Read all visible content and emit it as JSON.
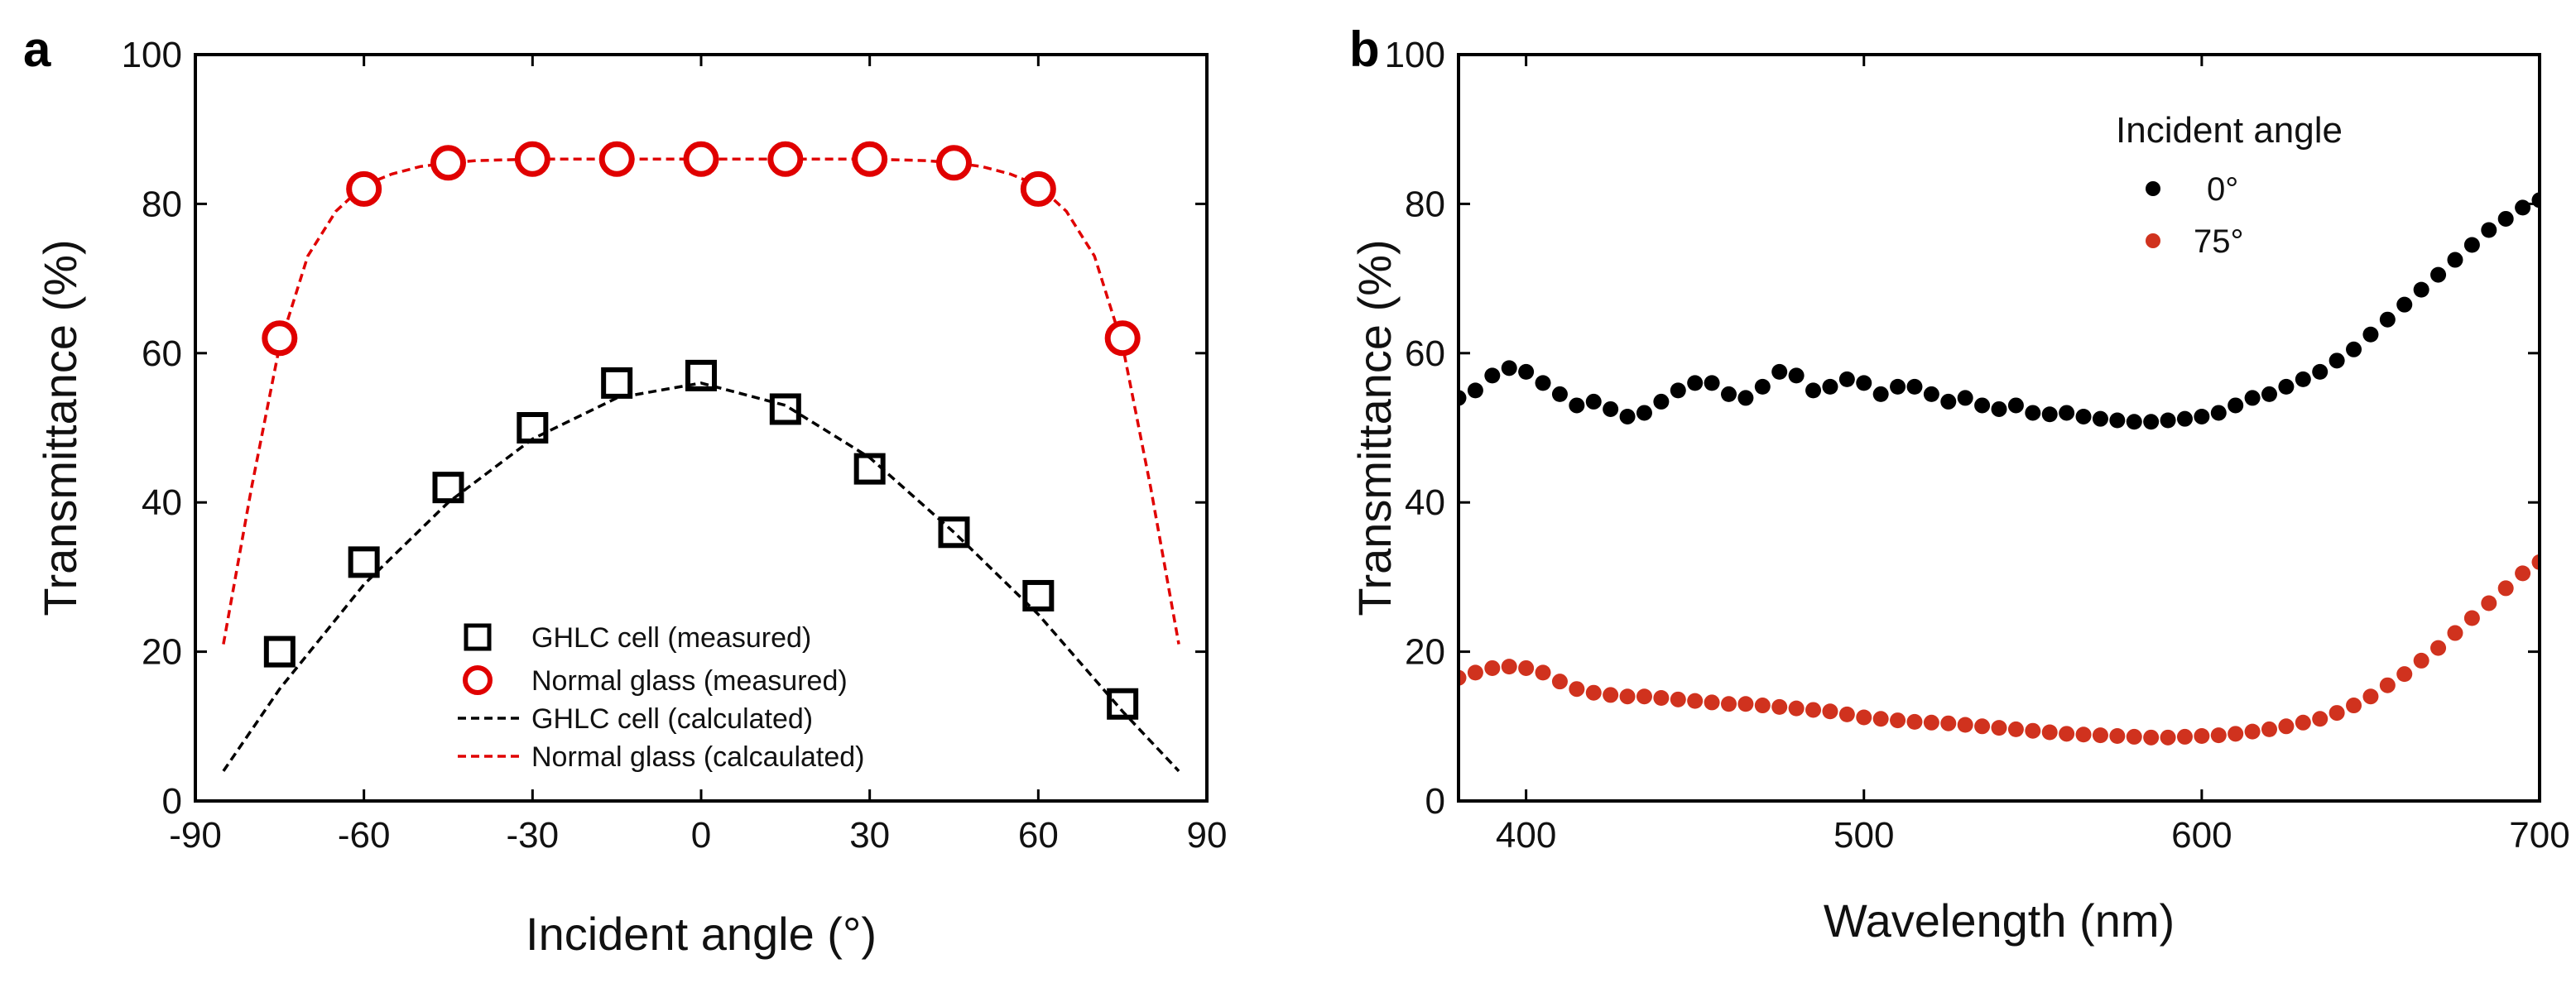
{
  "chart_data": [
    {
      "panel_label": "a",
      "type": "scatter",
      "xlabel": "Incident angle (°)",
      "ylabel": "Transmittance (%)",
      "xlim": [
        -90,
        90
      ],
      "ylim": [
        0,
        100
      ],
      "xticks": [
        "-90",
        "-60",
        "-30",
        "0",
        "30",
        "60",
        "90"
      ],
      "yticks": [
        "0",
        "20",
        "40",
        "60",
        "80",
        "100"
      ],
      "legend_position": "bottom-center",
      "series": [
        {
          "name": "GHLC cell (measured)",
          "kind": "marker-square",
          "color": "#000000",
          "x": [
            -75,
            -60,
            -45,
            -30,
            -15,
            0,
            15,
            30,
            45,
            60,
            75
          ],
          "y": [
            20,
            32,
            42,
            50,
            56,
            57,
            52.5,
            44.5,
            36,
            27.5,
            13
          ]
        },
        {
          "name": "Normal glass (measured)",
          "kind": "marker-circle",
          "color": "#e00000",
          "x": [
            -75,
            -60,
            -45,
            -30,
            -15,
            0,
            15,
            30,
            45,
            60,
            75
          ],
          "y": [
            62,
            82,
            85.5,
            86,
            86,
            86,
            86,
            86,
            85.5,
            82,
            62
          ]
        },
        {
          "name": "GHLC cell (calculated)",
          "kind": "dashed-line",
          "color": "#000000",
          "x": [
            -85,
            -75,
            -60,
            -45,
            -30,
            -15,
            0,
            15,
            30,
            45,
            60,
            75,
            85
          ],
          "y": [
            4,
            15,
            29,
            40,
            48.5,
            54,
            56,
            53,
            46,
            36,
            25,
            12,
            4
          ]
        },
        {
          "name": "Normal glass (calcaulated)",
          "kind": "dashed-line",
          "color": "#e00000",
          "x": [
            -85,
            -80,
            -75,
            -70,
            -65,
            -60,
            -55,
            -50,
            -45,
            -40,
            -30,
            -20,
            -10,
            0,
            10,
            20,
            30,
            40,
            45,
            50,
            55,
            60,
            65,
            70,
            75,
            80,
            85
          ],
          "y": [
            21,
            42,
            61,
            73,
            79,
            82.5,
            84,
            85,
            85.5,
            85.8,
            86,
            86,
            86,
            86,
            86,
            86,
            86,
            85.8,
            85.5,
            85,
            84,
            82.5,
            79,
            73,
            61,
            42,
            21
          ]
        }
      ]
    },
    {
      "panel_label": "b",
      "type": "scatter",
      "xlabel": "Wavelength (nm)",
      "ylabel": "Transmittance (%)",
      "xlim": [
        380,
        700
      ],
      "ylim": [
        0,
        100
      ],
      "xticks": [
        "400",
        "500",
        "600",
        "700"
      ],
      "yticks": [
        "0",
        "20",
        "40",
        "60",
        "80",
        "100"
      ],
      "legend_title": "Incident angle",
      "legend_position": "top-right",
      "series": [
        {
          "name": "0°",
          "color": "#000000",
          "x": [
            380,
            385,
            390,
            395,
            400,
            405,
            410,
            415,
            420,
            425,
            430,
            435,
            440,
            445,
            450,
            455,
            460,
            465,
            470,
            475,
            480,
            485,
            490,
            495,
            500,
            505,
            510,
            515,
            520,
            525,
            530,
            535,
            540,
            545,
            550,
            555,
            560,
            565,
            570,
            575,
            580,
            585,
            590,
            595,
            600,
            605,
            610,
            615,
            620,
            625,
            630,
            635,
            640,
            645,
            650,
            655,
            660,
            665,
            670,
            675,
            680,
            685,
            690,
            695,
            700
          ],
          "y": [
            54,
            55,
            57,
            58,
            57.5,
            56,
            54.5,
            53,
            53.5,
            52.5,
            51.5,
            52,
            53.5,
            55,
            56,
            56,
            54.5,
            54,
            55.5,
            57.5,
            57,
            55,
            55.5,
            56.5,
            56,
            54.5,
            55.5,
            55.5,
            54.5,
            53.5,
            54,
            53,
            52.5,
            53,
            52,
            51.8,
            52,
            51.5,
            51.2,
            51,
            50.8,
            50.8,
            51,
            51.2,
            51.5,
            52,
            53,
            54,
            54.5,
            55.5,
            56.5,
            57.5,
            59,
            60.5,
            62.5,
            64.5,
            66.5,
            68.5,
            70.5,
            72.5,
            74.5,
            76.5,
            78,
            79.5,
            80.5
          ]
        },
        {
          "name": "75°",
          "color": "#d0321e",
          "x": [
            380,
            385,
            390,
            395,
            400,
            405,
            410,
            415,
            420,
            425,
            430,
            435,
            440,
            445,
            450,
            455,
            460,
            465,
            470,
            475,
            480,
            485,
            490,
            495,
            500,
            505,
            510,
            515,
            520,
            525,
            530,
            535,
            540,
            545,
            550,
            555,
            560,
            565,
            570,
            575,
            580,
            585,
            590,
            595,
            600,
            605,
            610,
            615,
            620,
            625,
            630,
            635,
            640,
            645,
            650,
            655,
            660,
            665,
            670,
            675,
            680,
            685,
            690,
            695,
            700
          ],
          "y": [
            16.5,
            17.2,
            17.8,
            18,
            17.8,
            17.2,
            16,
            15,
            14.5,
            14.2,
            14,
            14,
            13.8,
            13.6,
            13.4,
            13.2,
            13,
            13,
            12.8,
            12.6,
            12.4,
            12.2,
            12,
            11.6,
            11.2,
            11,
            10.8,
            10.6,
            10.5,
            10.4,
            10.2,
            10,
            9.8,
            9.6,
            9.4,
            9.2,
            9,
            8.9,
            8.8,
            8.7,
            8.6,
            8.5,
            8.5,
            8.6,
            8.7,
            8.8,
            9,
            9.3,
            9.6,
            10,
            10.5,
            11,
            11.8,
            12.8,
            14,
            15.5,
            17,
            18.8,
            20.5,
            22.5,
            24.5,
            26.5,
            28.5,
            30.5,
            32
          ]
        }
      ]
    }
  ]
}
